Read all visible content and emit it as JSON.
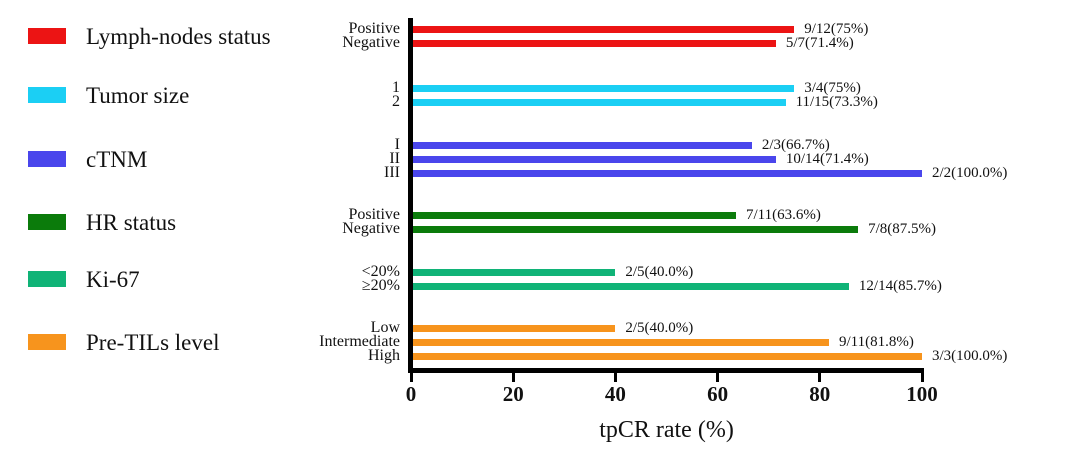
{
  "chart_data": {
    "type": "bar",
    "orientation": "horizontal",
    "xlabel": "tpCR rate (%)",
    "xlim": [
      0,
      100
    ],
    "xticks": [
      0,
      20,
      40,
      60,
      80,
      100
    ],
    "grid": false,
    "legend_position": "left",
    "groups": [
      {
        "name": "Lymph-nodes status",
        "color": "#ec1414",
        "rows": [
          {
            "label": "Positive",
            "value": 75,
            "annotation": "9/12(75%)"
          },
          {
            "label": "Negative",
            "value": 71.4,
            "annotation": "5/7(71.4%)"
          }
        ]
      },
      {
        "name": "Tumor size",
        "color": "#1bcff4",
        "rows": [
          {
            "label": "1",
            "value": 75,
            "annotation": "3/4(75%)"
          },
          {
            "label": "2",
            "value": 73.3,
            "annotation": "11/15(73.3%)"
          }
        ]
      },
      {
        "name": "cTNM",
        "color": "#4a46ec",
        "rows": [
          {
            "label": "I",
            "value": 66.7,
            "annotation": "2/3(66.7%)"
          },
          {
            "label": "II",
            "value": 71.4,
            "annotation": "10/14(71.4%)"
          },
          {
            "label": "III",
            "value": 100,
            "annotation": "2/2(100.0%)"
          }
        ]
      },
      {
        "name": "HR status",
        "color": "#0b7b0b",
        "rows": [
          {
            "label": "Positive",
            "value": 63.6,
            "annotation": "7/11(63.6%)"
          },
          {
            "label": "Negative",
            "value": 87.5,
            "annotation": "7/8(87.5%)"
          }
        ]
      },
      {
        "name": "Ki-67",
        "color": "#10b377",
        "rows": [
          {
            "label": "<20%",
            "value": 40,
            "annotation": "2/5(40.0%)"
          },
          {
            "label": "≥20%",
            "value": 85.7,
            "annotation": "12/14(85.7%)"
          }
        ]
      },
      {
        "name": "Pre-TILs level",
        "color": "#f7941d",
        "rows": [
          {
            "label": "Low",
            "value": 40,
            "annotation": "2/5(40.0%)"
          },
          {
            "label": "Intermediate",
            "value": 81.8,
            "annotation": "9/11(81.8%)"
          },
          {
            "label": "High",
            "value": 100,
            "annotation": "3/3(100.0%)"
          }
        ]
      }
    ],
    "axis_color": "#000000"
  }
}
